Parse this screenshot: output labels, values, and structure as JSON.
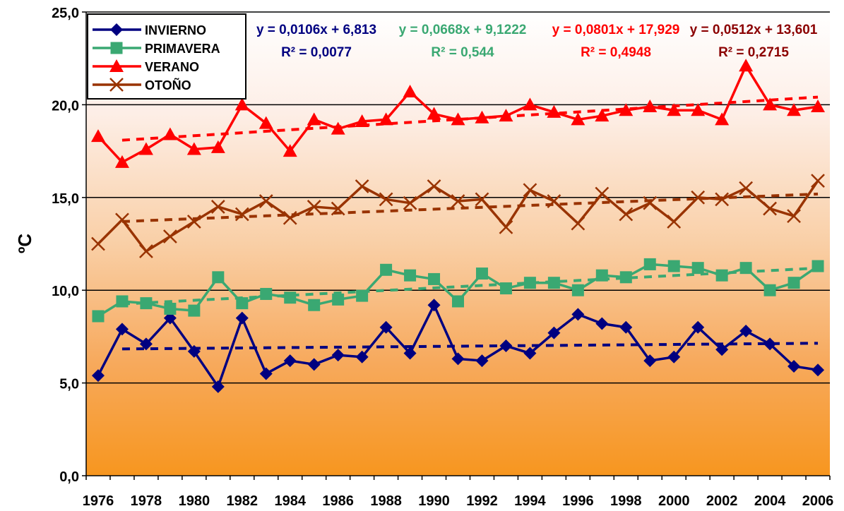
{
  "chart_data": {
    "type": "line",
    "title": "",
    "xlabel": "",
    "ylabel": "ºC",
    "ylim": [
      0,
      25
    ],
    "yticks": [
      "0,0",
      "5,0",
      "10,0",
      "15,0",
      "20,0",
      "25,0"
    ],
    "x": [
      1976,
      1977,
      1978,
      1979,
      1980,
      1981,
      1982,
      1983,
      1984,
      1985,
      1986,
      1987,
      1988,
      1989,
      1990,
      1991,
      1992,
      1993,
      1994,
      1995,
      1996,
      1997,
      1998,
      1999,
      2000,
      2001,
      2002,
      2003,
      2004,
      2005,
      2006
    ],
    "xtick_labels": [
      "1976",
      "1978",
      "1980",
      "1982",
      "1984",
      "1986",
      "1988",
      "1990",
      "1992",
      "1994",
      "1996",
      "1998",
      "2000",
      "2002",
      "2004",
      "2006"
    ],
    "grid": true,
    "legend": "top-left",
    "background": "vertical gradient white to orange",
    "series": [
      {
        "name": "INVIERNO",
        "color": "#000080",
        "marker": "diamond",
        "values": [
          5.4,
          7.9,
          7.1,
          8.5,
          6.7,
          4.8,
          8.5,
          5.5,
          6.2,
          6.0,
          6.5,
          6.4,
          8.0,
          6.6,
          9.2,
          6.3,
          6.2,
          7.0,
          6.6,
          7.7,
          8.7,
          8.2,
          8.0,
          6.2,
          6.4,
          8.0,
          6.8,
          7.8,
          7.1,
          5.9,
          5.7
        ],
        "trend": {
          "slope": 0.0106,
          "intercept": 6.813,
          "equation": "y = 0,0106x + 6,813",
          "r2": "R² = 0,0077"
        }
      },
      {
        "name": "PRIMAVERA",
        "color": "#3aa872",
        "marker": "square",
        "values": [
          8.6,
          9.4,
          9.3,
          9.0,
          8.9,
          10.7,
          9.3,
          9.8,
          9.6,
          9.2,
          9.5,
          9.7,
          11.1,
          10.8,
          10.6,
          9.4,
          10.9,
          10.1,
          10.4,
          10.4,
          10.0,
          10.8,
          10.7,
          11.4,
          11.3,
          11.2,
          10.8,
          11.2,
          10.0,
          10.4,
          11.3
        ],
        "trend": {
          "slope": 0.0668,
          "intercept": 9.1222,
          "equation": "y = 0,0668x + 9,1222",
          "r2": "R² = 0,544"
        }
      },
      {
        "name": "VERANO",
        "color": "#ff0000",
        "marker": "triangle",
        "values": [
          18.3,
          16.9,
          17.6,
          18.4,
          17.6,
          17.7,
          20.0,
          19.0,
          17.5,
          19.2,
          18.7,
          19.1,
          19.2,
          20.7,
          19.5,
          19.2,
          19.3,
          19.4,
          20.0,
          19.6,
          19.2,
          19.4,
          19.7,
          19.9,
          19.7,
          19.7,
          19.2,
          22.1,
          20.0,
          19.7,
          19.9
        ],
        "trend": {
          "slope": 0.0801,
          "intercept": 17.929,
          "equation": "y = 0,0801x + 17,929",
          "r2": "R² = 0,4948"
        }
      },
      {
        "name": "OTOÑO",
        "color": "#993300",
        "marker": "x",
        "values": [
          12.5,
          13.8,
          12.1,
          12.9,
          13.7,
          14.5,
          14.1,
          14.8,
          13.9,
          14.5,
          14.4,
          15.6,
          14.9,
          14.7,
          15.6,
          14.8,
          14.9,
          13.4,
          15.4,
          14.8,
          13.6,
          15.2,
          14.1,
          14.7,
          13.7,
          15.0,
          14.9,
          15.5,
          14.4,
          14.0,
          15.9
        ],
        "trend": {
          "slope": 0.0512,
          "intercept": 13.601,
          "equation": "y = 0,0512x + 13,601",
          "r2": "R² = 0,2715"
        }
      }
    ],
    "annotation_colors": [
      "#000080",
      "#3aa872",
      "#ff0000",
      "#8b0000"
    ]
  }
}
